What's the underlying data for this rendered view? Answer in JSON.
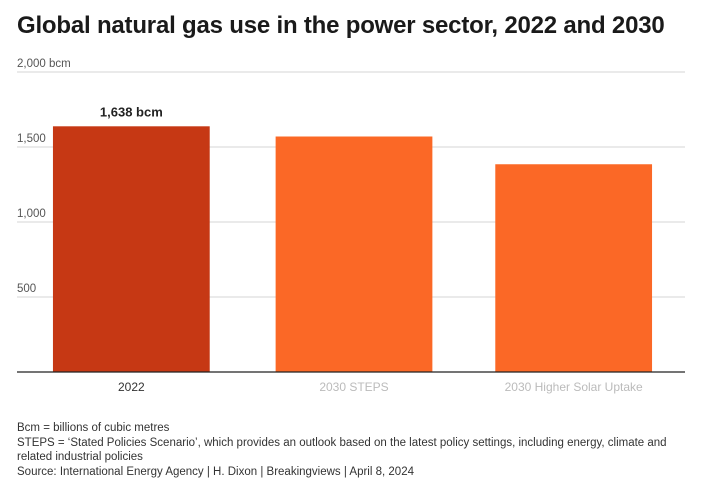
{
  "chart_data": {
    "type": "bar",
    "title": "Global natural gas use in the power sector, 2022 and 2030",
    "categories": [
      "2022",
      "2030 STEPS",
      "2030 Higher Solar Uptake"
    ],
    "values": [
      1638,
      1570,
      1385
    ],
    "value_labels": [
      "1,638 bcm",
      "",
      ""
    ],
    "ylim": [
      0,
      2000
    ],
    "yticks": [
      500,
      1000,
      1500,
      2000
    ],
    "ytick_labels": [
      "500",
      "1,000",
      "1,500",
      "2,000 bcm"
    ],
    "grid": true,
    "colors": [
      "#c63814",
      "#fb6826",
      "#fb6826"
    ],
    "axis_label_colors": [
      "#333333",
      "#bbbbbb",
      "#bbbbbb"
    ]
  },
  "notes": {
    "line1": "Bcm = billions of cubic metres",
    "line2": "STEPS = ‘Stated Policies Scenario’, which provides an outlook based on the latest policy settings, including energy, climate and related industrial policies",
    "line3": "Source: International Energy Agency | H. Dixon | Breakingviews | April 8, 2024"
  }
}
